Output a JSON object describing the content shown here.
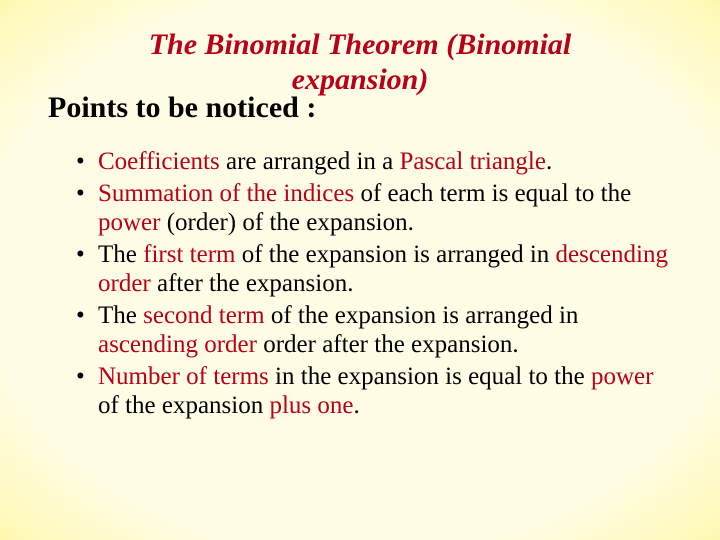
{
  "colors": {
    "accent": "#b80018",
    "text": "#000000",
    "bg_center": "#fffde5",
    "bg_mid": "#fff9b8",
    "bg_outer": "#ffe97a",
    "bg_corner": "#e9a3e8"
  },
  "typography": {
    "family": "Times New Roman",
    "title_fontsize_pt": 22,
    "subtitle_fontsize_pt": 22,
    "body_fontsize_pt": 18,
    "title_style": "bold italic",
    "subtitle_style": "bold"
  },
  "title": {
    "line1": "The Binomial Theorem (Binomial",
    "line2": "expansion)"
  },
  "subtitle": "Points to be noticed :",
  "bullets": [
    {
      "parts": [
        {
          "t": "Coefficients",
          "hl": true
        },
        {
          "t": " are arranged in a ",
          "hl": false
        },
        {
          "t": "Pascal triangle",
          "hl": true
        },
        {
          "t": ".",
          "hl": false
        }
      ]
    },
    {
      "parts": [
        {
          "t": "Summation of the indices",
          "hl": true
        },
        {
          "t": " of each term is equal to the ",
          "hl": false
        },
        {
          "t": "power",
          "hl": true
        },
        {
          "t": " (order) of the expansion.",
          "hl": false
        }
      ]
    },
    {
      "parts": [
        {
          "t": "The ",
          "hl": false
        },
        {
          "t": "first term",
          "hl": true
        },
        {
          "t": " of the expansion is arranged in ",
          "hl": false
        },
        {
          "t": "descending order",
          "hl": true
        },
        {
          "t": " after the expansion.",
          "hl": false
        }
      ]
    },
    {
      "parts": [
        {
          "t": "The ",
          "hl": false
        },
        {
          "t": "second term",
          "hl": true
        },
        {
          "t": " of the expansion is arranged in ",
          "hl": false
        },
        {
          "t": "ascending order",
          "hl": true
        },
        {
          "t": " order after the expansion.",
          "hl": false
        }
      ]
    },
    {
      "parts": [
        {
          "t": "Number of terms",
          "hl": true
        },
        {
          "t": " in the expansion is equal to the ",
          "hl": false
        },
        {
          "t": "power",
          "hl": true
        },
        {
          "t": " of the expansion ",
          "hl": false
        },
        {
          "t": "plus one",
          "hl": true
        },
        {
          "t": ".",
          "hl": false
        }
      ]
    }
  ]
}
